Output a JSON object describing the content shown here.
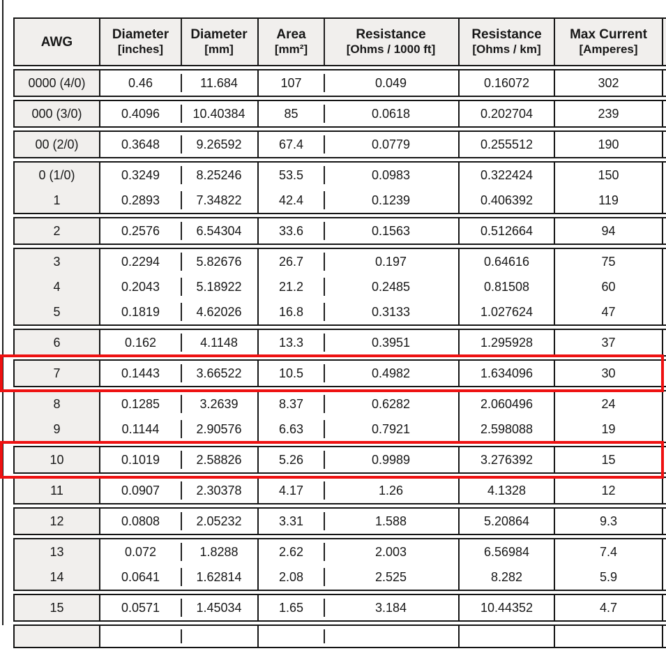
{
  "table": {
    "columns": [
      {
        "id": "awg",
        "label": "AWG",
        "unit": ""
      },
      {
        "id": "d_in",
        "label": "Diameter",
        "unit": "[inches]"
      },
      {
        "id": "d_mm",
        "label": "Diameter",
        "unit": "[mm]"
      },
      {
        "id": "area",
        "label": "Area",
        "unit": "[mm²]"
      },
      {
        "id": "r_ft",
        "label": "Resistance",
        "unit": "[Ohms / 1000 ft]"
      },
      {
        "id": "r_km",
        "label": "Resistance",
        "unit": "[Ohms / km]"
      },
      {
        "id": "max_a",
        "label": "Max Current",
        "unit": "[Amperes]"
      }
    ],
    "groups": [
      {
        "rows": [
          [
            "0000 (4/0)",
            "0.46",
            "11.684",
            "107",
            "0.049",
            "0.16072",
            "302"
          ]
        ]
      },
      {
        "rows": [
          [
            "000 (3/0)",
            "0.4096",
            "10.40384",
            "85",
            "0.0618",
            "0.202704",
            "239"
          ]
        ]
      },
      {
        "rows": [
          [
            "00 (2/0)",
            "0.3648",
            "9.26592",
            "67.4",
            "0.0779",
            "0.255512",
            "190"
          ]
        ]
      },
      {
        "rows": [
          [
            "0 (1/0)",
            "0.3249",
            "8.25246",
            "53.5",
            "0.0983",
            "0.322424",
            "150"
          ],
          [
            "1",
            "0.2893",
            "7.34822",
            "42.4",
            "0.1239",
            "0.406392",
            "119"
          ]
        ]
      },
      {
        "rows": [
          [
            "2",
            "0.2576",
            "6.54304",
            "33.6",
            "0.1563",
            "0.512664",
            "94"
          ]
        ]
      },
      {
        "rows": [
          [
            "3",
            "0.2294",
            "5.82676",
            "26.7",
            "0.197",
            "0.64616",
            "75"
          ],
          [
            "4",
            "0.2043",
            "5.18922",
            "21.2",
            "0.2485",
            "0.81508",
            "60"
          ],
          [
            "5",
            "0.1819",
            "4.62026",
            "16.8",
            "0.3133",
            "1.027624",
            "47"
          ]
        ]
      },
      {
        "rows": [
          [
            "6",
            "0.162",
            "4.1148",
            "13.3",
            "0.3951",
            "1.295928",
            "37"
          ]
        ]
      },
      {
        "rows": [
          [
            "7",
            "0.1443",
            "3.66522",
            "10.5",
            "0.4982",
            "1.634096",
            "30"
          ]
        ],
        "highlighted": true
      },
      {
        "rows": [
          [
            "8",
            "0.1285",
            "3.2639",
            "8.37",
            "0.6282",
            "2.060496",
            "24"
          ],
          [
            "9",
            "0.1144",
            "2.90576",
            "6.63",
            "0.7921",
            "2.598088",
            "19"
          ]
        ]
      },
      {
        "rows": [
          [
            "10",
            "0.1019",
            "2.58826",
            "5.26",
            "0.9989",
            "3.276392",
            "15"
          ]
        ],
        "highlighted": true
      },
      {
        "rows": [
          [
            "11",
            "0.0907",
            "2.30378",
            "4.17",
            "1.26",
            "4.1328",
            "12"
          ]
        ]
      },
      {
        "rows": [
          [
            "12",
            "0.0808",
            "2.05232",
            "3.31",
            "1.588",
            "5.20864",
            "9.3"
          ]
        ]
      },
      {
        "rows": [
          [
            "13",
            "0.072",
            "1.8288",
            "2.62",
            "2.003",
            "6.56984",
            "7.4"
          ],
          [
            "14",
            "0.0641",
            "1.62814",
            "2.08",
            "2.525",
            "8.282",
            "5.9"
          ]
        ]
      },
      {
        "rows": [
          [
            "15",
            "0.0571",
            "1.45034",
            "1.65",
            "3.184",
            "10.44352",
            "4.7"
          ]
        ]
      }
    ],
    "partial_bottom_row": true,
    "colors": {
      "highlight_border": "#ee1111",
      "header_background": "#f1efed",
      "awg_column_background": "#f1efed",
      "table_border": "#141414",
      "text": "#171717"
    }
  }
}
